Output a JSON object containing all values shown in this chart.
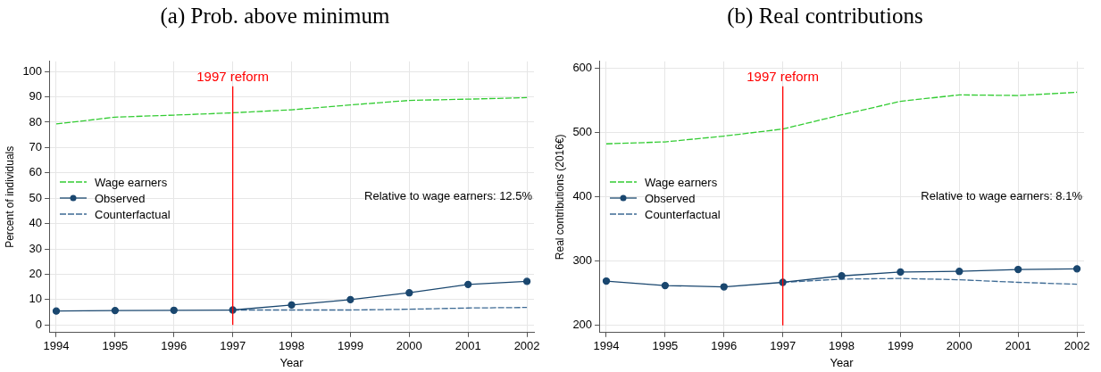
{
  "chart_data": [
    {
      "type": "line",
      "title": "(a) Prob. above minimum",
      "xlabel": "Year",
      "ylabel": "Percent of individuals",
      "x": [
        1994,
        1995,
        1996,
        1997,
        1998,
        1999,
        2000,
        2001,
        2002
      ],
      "xlim": [
        1993.88,
        2002.12
      ],
      "xticks": [
        1994,
        1995,
        1996,
        1997,
        1998,
        1999,
        2000,
        2001,
        2002
      ],
      "ylim": [
        -3,
        104
      ],
      "yticks": [
        0,
        10,
        20,
        30,
        40,
        50,
        60,
        70,
        80,
        90,
        100
      ],
      "grid": true,
      "legend": "left",
      "annotations": [
        "Relative to wage earners: 12.5%"
      ],
      "ref_lines": [
        {
          "axis": "x",
          "value": 1997,
          "label": "1997 reform",
          "color": "#ff0000"
        }
      ],
      "series": [
        {
          "name": "Wage earners",
          "color": "#33cc33",
          "line_style": "dashed",
          "marker": "none",
          "values": [
            79.3,
            82,
            82.8,
            83.7,
            84.9,
            86.8,
            88.6,
            89.1,
            89.7
          ]
        },
        {
          "name": "Observed",
          "color": "#1a476f",
          "line_style": "solid",
          "marker": "circle",
          "values": [
            5.5,
            5.7,
            5.8,
            5.9,
            7.9,
            10,
            12.7,
            16,
            17.2
          ]
        },
        {
          "name": "Counterfactual",
          "color": "#3d6a94",
          "line_style": "dashed",
          "marker": "none",
          "x": [
            1997,
            1998,
            1999,
            2000,
            2001,
            2002
          ],
          "values": [
            5.9,
            5.9,
            5.9,
            6.2,
            6.7,
            6.9
          ]
        }
      ]
    },
    {
      "type": "line",
      "title": "(b) Real contributions",
      "xlabel": "Year",
      "ylabel": "Real contributions (2016€)",
      "x": [
        1994,
        1995,
        1996,
        1997,
        1998,
        1999,
        2000,
        2001,
        2002
      ],
      "xlim": [
        1993.88,
        2002.12
      ],
      "xticks": [
        1994,
        1995,
        1996,
        1997,
        1998,
        1999,
        2000,
        2001,
        2002
      ],
      "ylim": [
        189,
        610
      ],
      "yticks": [
        200,
        300,
        400,
        500,
        600
      ],
      "grid": true,
      "legend": "left",
      "annotations": [
        "Relative to wage earners: 8.1%"
      ],
      "ref_lines": [
        {
          "axis": "x",
          "value": 1997,
          "label": "1997 reform",
          "color": "#ff0000"
        }
      ],
      "series": [
        {
          "name": "Wage earners",
          "color": "#33cc33",
          "line_style": "dashed",
          "marker": "none",
          "values": [
            482,
            485,
            494,
            505,
            527,
            548,
            558,
            557,
            562
          ]
        },
        {
          "name": "Observed",
          "color": "#1a476f",
          "line_style": "solid",
          "marker": "circle",
          "values": [
            269,
            262,
            260,
            267,
            277,
            283,
            284,
            287,
            288
          ]
        },
        {
          "name": "Counterfactual",
          "color": "#3d6a94",
          "line_style": "dashed",
          "marker": "none",
          "x": [
            1997,
            1998,
            1999,
            2000,
            2001,
            2002
          ],
          "values": [
            267,
            272,
            273,
            271,
            267,
            264
          ]
        }
      ]
    }
  ]
}
